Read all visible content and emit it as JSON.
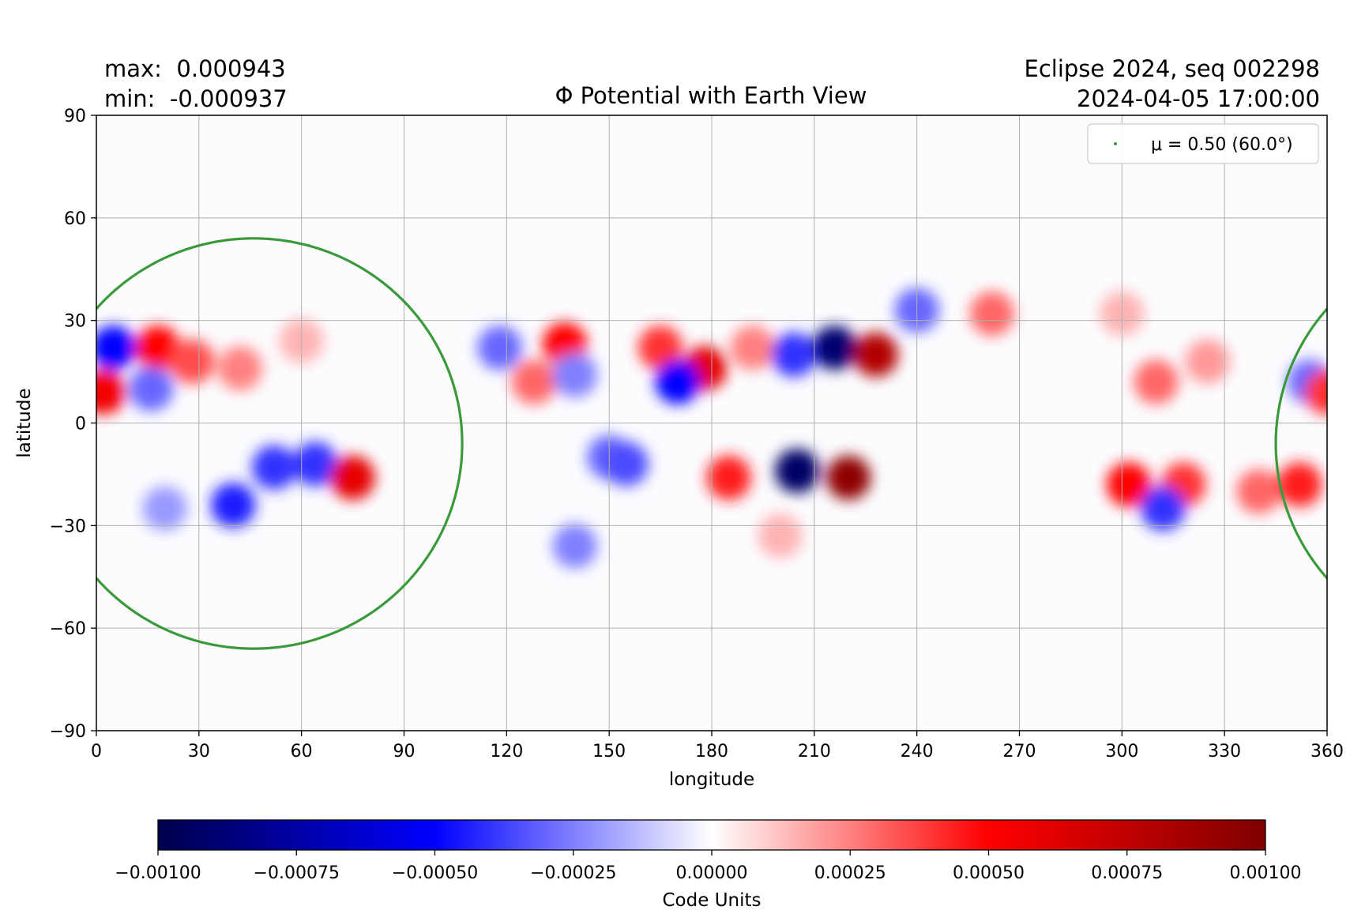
{
  "header": {
    "max_text": "max:  0.000943",
    "min_text": "min:  -0.000937",
    "title": "Φ Potential with Earth View",
    "source_text": "Eclipse 2024, seq 002298",
    "datetime_text": "2024-04-05 17:00:00"
  },
  "chart_data": {
    "type": "heatmap",
    "title": "Φ Potential with Earth View",
    "xlabel": "longitude",
    "ylabel": "latitude",
    "xlim": [
      0,
      360
    ],
    "ylim": [
      -90,
      90
    ],
    "xticks": [
      0,
      30,
      60,
      90,
      120,
      150,
      180,
      210,
      240,
      270,
      300,
      330,
      360
    ],
    "yticks": [
      -90,
      -60,
      -30,
      0,
      30,
      60,
      90
    ],
    "ytick_labels": [
      "−90",
      "−60",
      "−30",
      "0",
      "30",
      "60",
      "90"
    ],
    "grid": true,
    "max": 0.000943,
    "min": -0.000937,
    "legend": {
      "placement": "top-right",
      "label": "μ = 0.50 (60.0°)",
      "color": "#3a9a3a"
    },
    "earth_view_contour": {
      "name": "μ = 0.50 (60.0°)",
      "center_lon": 46,
      "center_lat": -6,
      "lon_halfwidth": 61,
      "lat_top": 54,
      "lat_bottom": -66,
      "color": "#3a9a3a"
    },
    "features": [
      {
        "lon": 5,
        "lat": 22,
        "value": -0.0005
      },
      {
        "lon": 2,
        "lat": 9,
        "value": 0.00055
      },
      {
        "lon": 18,
        "lat": 22,
        "value": 0.0005
      },
      {
        "lon": 28,
        "lat": 18,
        "value": 0.00035
      },
      {
        "lon": 16,
        "lat": 10,
        "value": -0.0003
      },
      {
        "lon": 42,
        "lat": 16,
        "value": 0.00025
      },
      {
        "lon": 20,
        "lat": -25,
        "value": -0.0002
      },
      {
        "lon": 40,
        "lat": -24,
        "value": -0.00045
      },
      {
        "lon": 52,
        "lat": -13,
        "value": -0.0004
      },
      {
        "lon": 64,
        "lat": -12,
        "value": -0.0004
      },
      {
        "lon": 75,
        "lat": -16,
        "value": 0.0006
      },
      {
        "lon": 60,
        "lat": 24,
        "value": 0.00015
      },
      {
        "lon": 118,
        "lat": 22,
        "value": -0.0003
      },
      {
        "lon": 137,
        "lat": 23,
        "value": 0.0005
      },
      {
        "lon": 128,
        "lat": 12,
        "value": 0.0003
      },
      {
        "lon": 140,
        "lat": 14,
        "value": -0.00025
      },
      {
        "lon": 165,
        "lat": 22,
        "value": 0.0004
      },
      {
        "lon": 178,
        "lat": 16,
        "value": 0.0006
      },
      {
        "lon": 170,
        "lat": 12,
        "value": -0.0005
      },
      {
        "lon": 192,
        "lat": 22,
        "value": 0.00025
      },
      {
        "lon": 204,
        "lat": 20,
        "value": -0.0004
      },
      {
        "lon": 216,
        "lat": 22,
        "value": -0.0009
      },
      {
        "lon": 228,
        "lat": 20,
        "value": 0.0008
      },
      {
        "lon": 240,
        "lat": 33,
        "value": -0.0003
      },
      {
        "lon": 262,
        "lat": 32,
        "value": 0.0003
      },
      {
        "lon": 150,
        "lat": -10,
        "value": -0.0003
      },
      {
        "lon": 155,
        "lat": -12,
        "value": -0.00035
      },
      {
        "lon": 140,
        "lat": -36,
        "value": -0.00025
      },
      {
        "lon": 185,
        "lat": -16,
        "value": 0.00045
      },
      {
        "lon": 205,
        "lat": -14,
        "value": -0.00093
      },
      {
        "lon": 220,
        "lat": -16,
        "value": 0.00094
      },
      {
        "lon": 200,
        "lat": -33,
        "value": 0.00015
      },
      {
        "lon": 310,
        "lat": 12,
        "value": 0.0003
      },
      {
        "lon": 325,
        "lat": 18,
        "value": 0.0002
      },
      {
        "lon": 355,
        "lat": 12,
        "value": -0.0003
      },
      {
        "lon": 360,
        "lat": 9,
        "value": 0.0004
      },
      {
        "lon": 302,
        "lat": -18,
        "value": 0.0005
      },
      {
        "lon": 318,
        "lat": -18,
        "value": 0.0004
      },
      {
        "lon": 312,
        "lat": -25,
        "value": -0.0004
      },
      {
        "lon": 340,
        "lat": -20,
        "value": 0.0003
      },
      {
        "lon": 352,
        "lat": -18,
        "value": 0.00045
      },
      {
        "lon": 300,
        "lat": 32,
        "value": 0.00015
      }
    ],
    "colorbar": {
      "label": "Code Units",
      "colormap": "seismic",
      "range": [
        -0.001,
        0.001
      ],
      "ticks": [
        -0.001,
        -0.00075,
        -0.0005,
        -0.00025,
        0,
        0.00025,
        0.0005,
        0.00075,
        0.001
      ],
      "tick_labels": [
        "−0.00100",
        "−0.00075",
        "−0.00050",
        "−0.00025",
        "0.00000",
        "0.00025",
        "0.00050",
        "0.00075",
        "0.00100"
      ],
      "colors": [
        "#00004c",
        "#0000ff",
        "#ffffff",
        "#ff0000",
        "#7f0000"
      ]
    }
  }
}
